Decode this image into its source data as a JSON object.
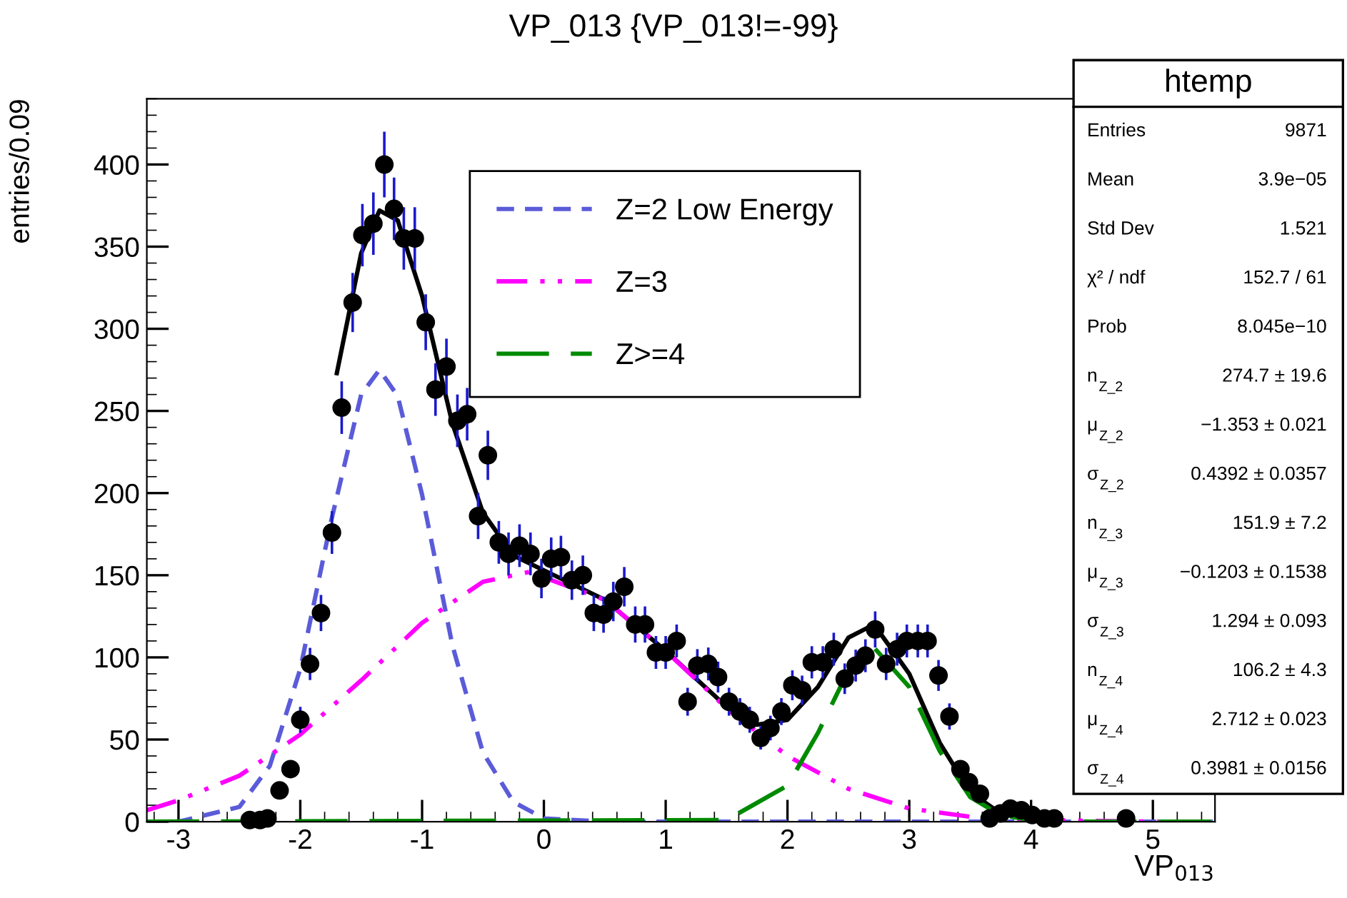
{
  "chart_data": {
    "type": "scatter",
    "title": "VP_013 {VP_013!=-99}",
    "xlabel": "VP$_{013}$",
    "ylabel": "entries/0.09",
    "xlim": [
      -3.26,
      5.51
    ],
    "xticks": [
      -3,
      -2,
      -1,
      0,
      1,
      2,
      3,
      4,
      5
    ],
    "ylim": [
      0,
      440
    ],
    "yticks": [
      0,
      50,
      100,
      150,
      200,
      250,
      300,
      350,
      400
    ],
    "grid": false,
    "legend": "top",
    "series": [
      {
        "marker": "circle",
        "color": "#000000",
        "x": [
          -2.415,
          -2.33,
          -2.27,
          -2.17,
          -2.08,
          -2.0,
          -1.92,
          -1.83,
          -1.74,
          -1.66,
          -1.57,
          -1.49,
          -1.4,
          -1.31,
          -1.23,
          -1.15,
          -1.06,
          -0.97,
          -0.89,
          -0.8,
          -0.71,
          -0.63,
          -0.54,
          -0.46,
          -0.37,
          -0.29,
          -0.2,
          -0.11,
          -0.02,
          0.06,
          0.14,
          0.23,
          0.32,
          0.41,
          0.49,
          0.57,
          0.66,
          0.75,
          0.83,
          0.92,
          1.0,
          1.09,
          1.18,
          1.26,
          1.35,
          1.43,
          1.52,
          1.61,
          1.69,
          1.78,
          1.86,
          1.95,
          2.04,
          2.12,
          2.2,
          2.29,
          2.38,
          2.47,
          2.56,
          2.64,
          2.72,
          2.81,
          2.9,
          2.98,
          3.07,
          3.15,
          3.24,
          3.33,
          3.42,
          3.49,
          3.58,
          3.66,
          3.75,
          3.83,
          3.92,
          4.01,
          4.11,
          4.19,
          4.78
        ],
        "values": [
          1,
          1,
          2,
          19,
          32,
          62,
          96,
          127,
          176,
          252,
          316,
          357,
          364,
          400,
          373,
          355,
          355,
          304,
          263,
          277,
          244,
          248,
          186,
          223,
          170,
          163,
          168,
          163,
          148,
          160,
          161,
          147,
          150,
          127,
          126,
          134,
          143,
          120,
          120,
          103,
          103,
          110,
          73,
          95,
          96,
          88,
          73,
          67,
          62,
          51,
          57,
          67,
          83,
          80,
          97,
          97,
          105,
          87,
          95,
          101,
          117,
          96,
          105,
          110,
          110,
          110,
          89,
          64,
          32,
          24,
          17,
          2,
          5,
          8,
          7,
          4,
          2,
          2,
          2
        ],
        "errors": [
          null,
          null,
          null,
          null,
          null,
          7.9,
          9.8,
          11,
          13,
          16,
          18,
          19,
          19,
          20,
          19,
          19,
          19,
          17,
          16,
          17,
          16,
          16,
          14,
          15,
          13,
          13,
          13,
          13,
          12,
          13,
          13,
          12,
          12,
          11,
          11,
          12,
          12,
          11,
          11,
          10,
          10,
          10,
          8.5,
          10,
          10,
          9.4,
          8.5,
          8.2,
          7.9,
          7.1,
          7.5,
          8.2,
          9.1,
          8.9,
          9.8,
          9.8,
          10,
          9.3,
          9.7,
          10,
          11,
          9.8,
          10,
          10,
          10,
          10,
          9.4,
          8,
          null,
          null,
          null,
          null,
          null,
          null,
          null,
          null,
          null,
          null,
          null
        ]
      },
      {
        "type": "line",
        "color": "#000000",
        "line_style": "solid",
        "x": [
          -1.7,
          -1.5,
          -1.35,
          -1.2,
          -1.0,
          -0.75,
          -0.5,
          -0.25,
          0.0,
          0.5,
          1.0,
          1.5,
          1.75,
          2.0,
          2.25,
          2.5,
          2.71,
          3.0,
          3.25,
          3.5,
          3.75,
          4.0,
          4.2
        ],
        "values": [
          273,
          346,
          372,
          366,
          320,
          242,
          188,
          162,
          153,
          135,
          104,
          70,
          59,
          62,
          82,
          112,
          120,
          90,
          48,
          18,
          5,
          2,
          0
        ]
      },
      {
        "type": "line",
        "name": "Z=2 Low Energy",
        "color": "#5b5bd9",
        "line_style": "dashed",
        "x": [
          -3.26,
          -3.0,
          -2.5,
          -2.25,
          -2.0,
          -1.75,
          -1.5,
          -1.35,
          -1.2,
          -1.0,
          -0.75,
          -0.5,
          -0.25,
          0.0,
          0.5,
          5.51
        ],
        "values": [
          0,
          0,
          9,
          34,
          93,
          182,
          260,
          275,
          259,
          199,
          107,
          42,
          12,
          2,
          0,
          0
        ]
      },
      {
        "type": "line",
        "name": "Z=3",
        "color": "#ff00ff",
        "line_style": "dashdotdot",
        "x": [
          -3.26,
          -3.0,
          -2.5,
          -2.0,
          -1.5,
          -1.0,
          -0.5,
          -0.12,
          0.5,
          1.0,
          1.5,
          2.0,
          2.5,
          3.0,
          3.5,
          4.0,
          5.0,
          5.51
        ],
        "values": [
          7,
          13,
          28,
          53,
          86,
          121,
          146,
          152,
          135,
          104,
          69,
          40,
          20,
          8,
          3,
          1,
          0,
          0
        ]
      },
      {
        "type": "line",
        "name": "Z>=4",
        "color": "#008a00",
        "line_style": "longdash",
        "x": [
          -3.26,
          1.5,
          2.0,
          2.25,
          2.5,
          2.71,
          3.0,
          3.25,
          3.5,
          3.75,
          4.0,
          4.5,
          5.51
        ],
        "values": [
          0,
          1,
          22,
          54,
          92,
          106,
          82,
          43,
          15,
          4,
          1,
          0,
          0
        ]
      }
    ],
    "annotations": [
      "htemp",
      "Entries",
      "9871",
      "Mean",
      "3.9e−05",
      "Std Dev",
      "1.521",
      "χ² / ndf",
      "152.7 / 61",
      "Prob",
      "8.045e−10",
      "n$_{Z_2}$",
      "274.7 ± 19.6",
      "μ$_{Z_2}$",
      "−1.353 ± 0.021",
      "σ$_{Z_2}$",
      "0.4392 ± 0.0357",
      "n$_{Z_3}$",
      "151.9 ± 7.2",
      "μ$_{Z_3}$",
      "−0.1203 ± 0.1538",
      "σ$_{Z_3}$",
      "1.294 ± 0.093",
      "n$_{Z_4}$",
      "106.2 ± 4.3",
      "μ$_{Z_4}$",
      "2.712 ± 0.023",
      "σ$_{Z_4}$",
      "0.3981 ± 0.0156"
    ]
  }
}
